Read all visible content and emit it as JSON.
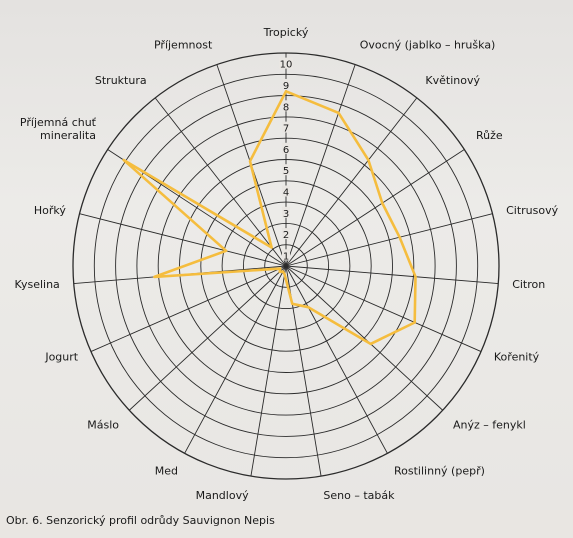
{
  "caption": "Obr. 6. Senzorický profil odrůdy Sauvignon Nepis",
  "chart_data": {
    "type": "radar",
    "title": "",
    "rmax": 10,
    "ticks": [
      "1",
      "2",
      "3",
      "4",
      "5",
      "6",
      "7",
      "8",
      "9",
      "10"
    ],
    "grid": true,
    "line_color": "#f5bd3e",
    "categories": [
      [
        "Tropický"
      ],
      [
        "Ovocný (jablko – hruška)"
      ],
      [
        "Květinový"
      ],
      [
        "Růže"
      ],
      [
        "Citrusový"
      ],
      [
        "Citron"
      ],
      [
        "Kořenitý"
      ],
      [
        "Anýz – fenykl"
      ],
      [
        "Rostilinný (pepř)"
      ],
      [
        "Seno – tabák"
      ],
      [
        "Mandlový"
      ],
      [
        "Med"
      ],
      [
        "Máslo"
      ],
      [
        "Jogurt"
      ],
      [
        "Kyselina"
      ],
      [
        "Hořký"
      ],
      [
        "Příjemná chuť",
        "mineralita"
      ],
      [
        "Struktura"
      ],
      [
        "Příjemnost"
      ]
    ],
    "values": [
      8.2,
      7.6,
      6.3,
      5.4,
      5.5,
      6.1,
      6.6,
      5.4,
      2.2,
      1.8,
      0.4,
      0.3,
      0.4,
      0.3,
      6.2,
      2.9,
      9.1,
      1.1,
      5.2
    ]
  }
}
